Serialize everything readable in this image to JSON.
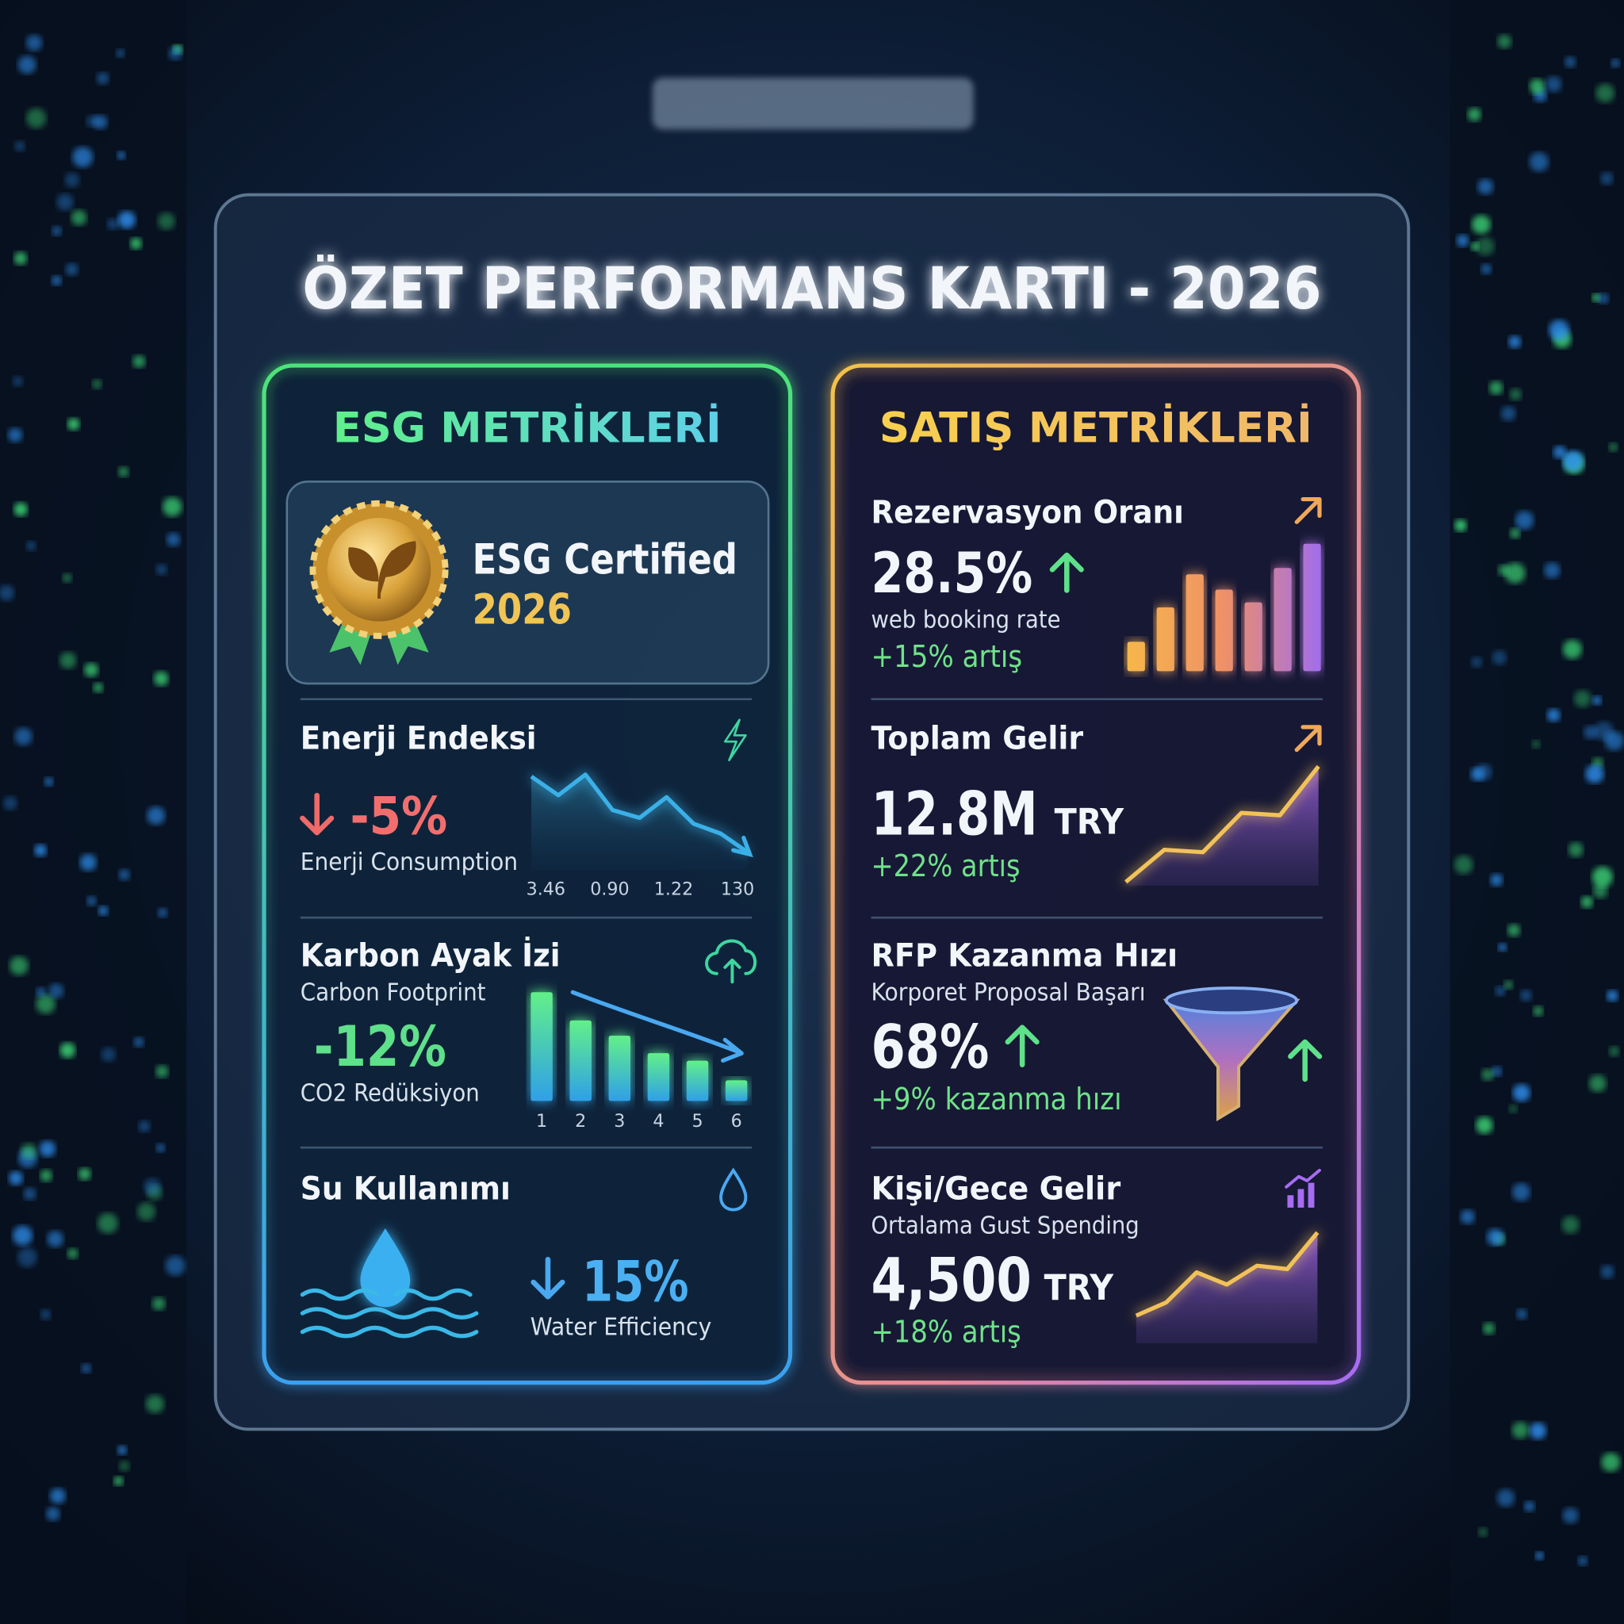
{
  "header": {
    "title": "ÖZET PERFORMANS KARTI - 2026"
  },
  "esg": {
    "title": "ESG METRİKLERİ",
    "certificate": {
      "label": "ESG Certified",
      "year": "2026"
    },
    "energy": {
      "title": "Enerji Endeksi",
      "value": "-5%",
      "caption": "Enerji Consumption",
      "chart": {
        "type": "line",
        "values": [
          95,
          76,
          97,
          61,
          53,
          74,
          47,
          37,
          18
        ],
        "ylim": [
          0,
          100
        ],
        "x_labels": [
          "3.46",
          "0.90",
          "1.22",
          "130"
        ]
      }
    },
    "carbon": {
      "title": "Karbon Ayak İzi",
      "subtitle": "Carbon Footprint",
      "value": "-12%",
      "caption": "CO2 Redüksiyon",
      "chart": {
        "type": "bar",
        "categories": [
          "1",
          "2",
          "3",
          "4",
          "5",
          "6"
        ],
        "values": [
          100,
          74,
          60,
          44,
          37,
          19
        ],
        "ylim": [
          0,
          100
        ]
      }
    },
    "water": {
      "title": "Su Kullanımı",
      "value": "15%",
      "caption": "Water Efficiency"
    }
  },
  "sales": {
    "title": "SATIŞ METRİKLERİ",
    "booking": {
      "title": "Rezervasyon Oranı",
      "value": "28.5%",
      "caption": "web booking rate",
      "change": "+15% artış",
      "chart": {
        "type": "bar",
        "values": [
          23,
          50,
          76,
          64,
          54,
          81,
          100
        ],
        "ylim": [
          0,
          100
        ]
      }
    },
    "revenue": {
      "title": "Toplam Gelir",
      "value": "12.8M",
      "unit": "TRY",
      "change": "+22% artış",
      "chart": {
        "type": "area",
        "values": [
          3,
          30,
          28,
          61,
          59,
          100
        ],
        "ylim": [
          0,
          100
        ]
      }
    },
    "rfp": {
      "title": "RFP Kazanma Hızı",
      "subtitle": "Korporet Proposal Başarı",
      "value": "68%",
      "change": "+9% kazanma hızı"
    },
    "spend": {
      "title": "Kişi/Gece Gelir",
      "subtitle": "Ortalama Gust Spending",
      "value": "4,500",
      "unit": "TRY",
      "change": "+18% artış",
      "chart": {
        "type": "area",
        "values": [
          25,
          37,
          64,
          53,
          70,
          67,
          100
        ],
        "ylim": [
          0,
          100
        ]
      }
    }
  }
}
